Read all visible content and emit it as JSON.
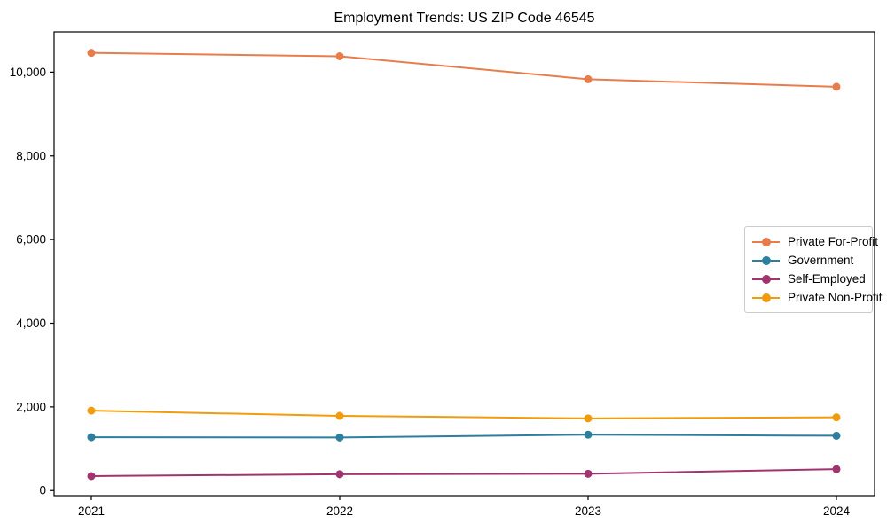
{
  "title": "Employment Trends: US ZIP Code 46545",
  "chart_data": {
    "type": "line",
    "title": "Employment Trends: US ZIP Code 46545",
    "xlabel": "",
    "ylabel": "",
    "categories": [
      "2021",
      "2022",
      "2023",
      "2024"
    ],
    "x": [
      2021,
      2022,
      2023,
      2024
    ],
    "series": [
      {
        "name": "Private For-Profit",
        "color": "#e87d4c",
        "values": [
          10460,
          10380,
          9830,
          9650
        ]
      },
      {
        "name": "Government",
        "color": "#2d7f9e",
        "values": [
          1275,
          1270,
          1335,
          1310
        ]
      },
      {
        "name": "Self-Employed",
        "color": "#a1336f",
        "values": [
          345,
          390,
          400,
          510
        ]
      },
      {
        "name": "Private Non-Profit",
        "color": "#f09c0d",
        "values": [
          1910,
          1785,
          1725,
          1750
        ]
      }
    ],
    "yticks": [
      0,
      2000,
      4000,
      6000,
      8000,
      10000
    ],
    "ytick_labels": [
      "0",
      "2,000",
      "4,000",
      "6,000",
      "8,000",
      "10,000"
    ],
    "ylim": [
      -122,
      10962
    ],
    "grid": false,
    "legend_position": "center-right",
    "marker": "circle",
    "axis_color": "#000000"
  }
}
